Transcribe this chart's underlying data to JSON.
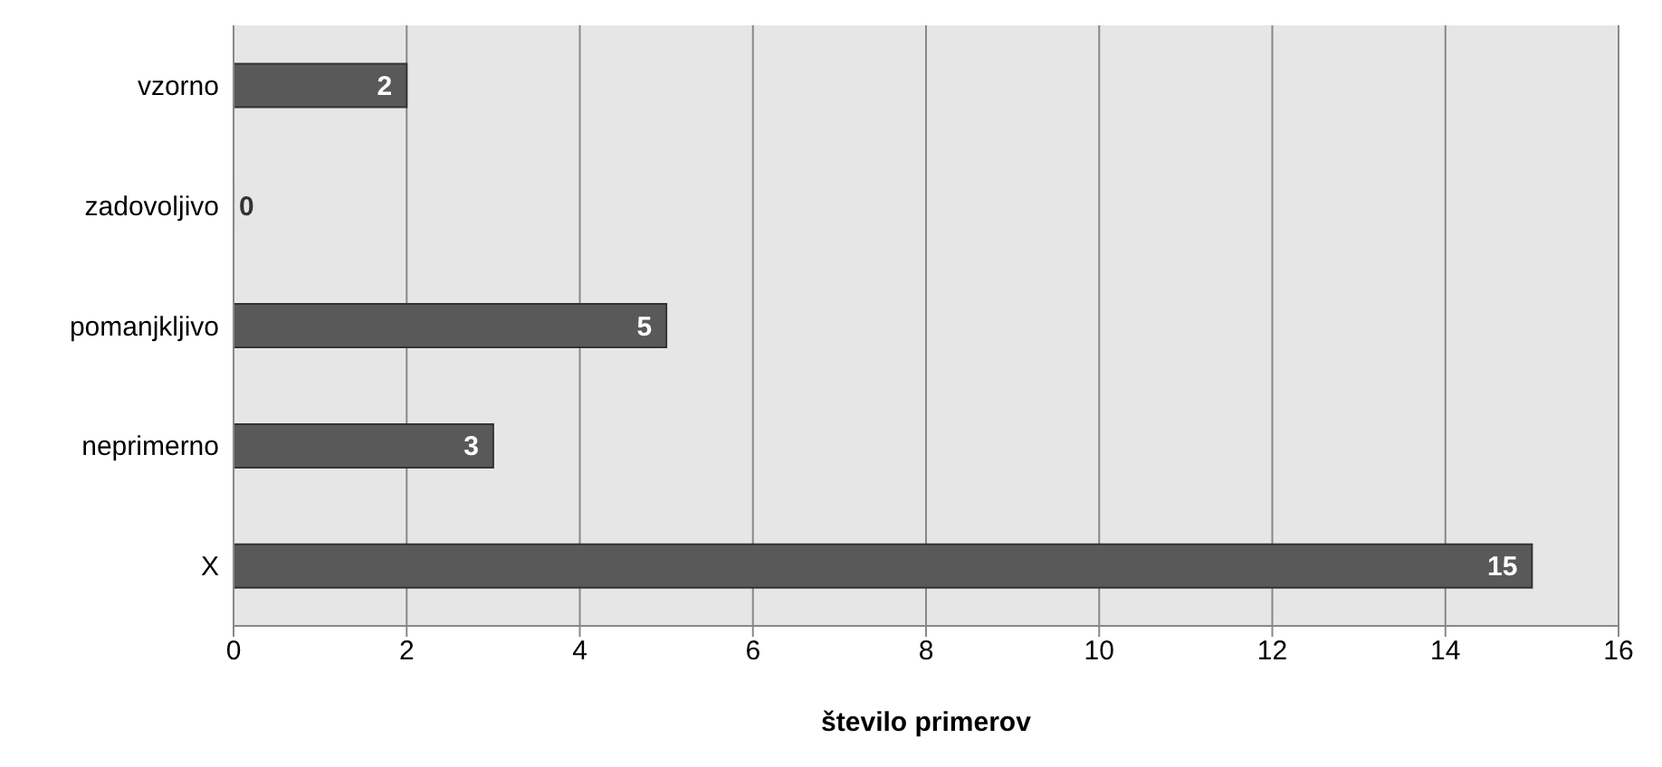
{
  "chart_data": {
    "type": "bar",
    "orientation": "horizontal",
    "xlabel": "število primerov",
    "categories": [
      "vzorno",
      "zadovoljivo",
      "pomanjkljivo",
      "neprimerno",
      "X"
    ],
    "values": [
      2,
      0,
      5,
      3,
      15
    ],
    "color": "#595959",
    "xlim": [
      0,
      16
    ],
    "xticks": [
      0,
      2,
      4,
      6,
      8,
      10,
      12,
      14,
      16
    ],
    "grid": "x",
    "data_labels": true
  }
}
